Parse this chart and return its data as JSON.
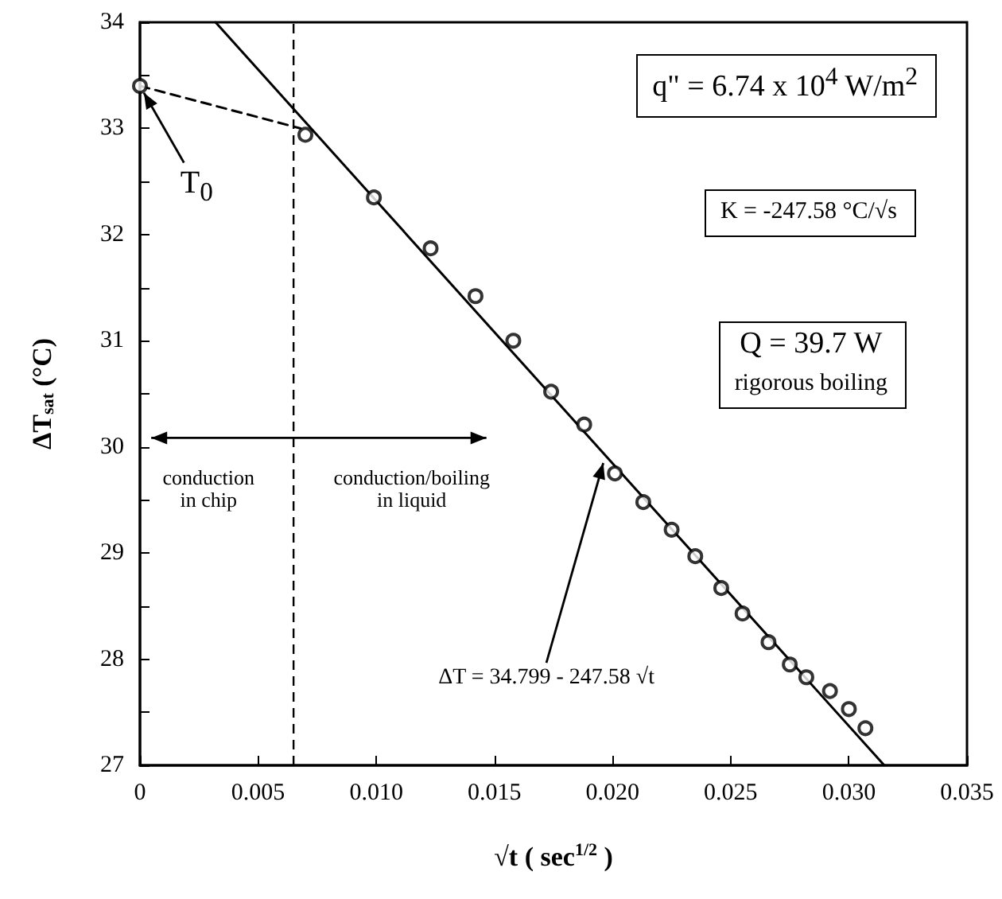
{
  "chart_data": {
    "type": "scatter",
    "xlabel": "√t ( sec$^{1/2}$ )",
    "ylabel": "ΔT$_{sat}$ (°C)",
    "xlim": [
      0,
      0.035
    ],
    "ylim": [
      27,
      34
    ],
    "xticks": [
      0,
      0.005,
      {
        "value": 0.01,
        "label": "0.010"
      },
      0.015,
      {
        "value": 0.02,
        "label": "0.020"
      },
      0.025,
      {
        "value": 0.03,
        "label": "0.030"
      },
      0.035
    ],
    "yticks": [
      27,
      {
        "value": 27.5,
        "label": null
      },
      28,
      {
        "value": 28.5,
        "label": null
      },
      29,
      {
        "value": 29.5,
        "label": null
      },
      30,
      {
        "value": 30.5,
        "label": null
      },
      31,
      {
        "value": 31.5,
        "label": null
      },
      32,
      {
        "value": 32.5,
        "label": null
      },
      33,
      {
        "value": 33.5,
        "label": null
      },
      34
    ],
    "grid": false,
    "series": [
      {
        "color": "#000000",
        "marker": "circle",
        "x": [
          0,
          0.007,
          0.0099,
          0.0123,
          0.0142,
          0.0158,
          0.0174,
          0.0188,
          0.0201,
          0.0213,
          0.0225,
          0.0235,
          0.0246,
          0.0255,
          0.0266,
          0.0275,
          0.0282,
          0.0292,
          0.03,
          0.0307
        ],
        "values": [
          33.4,
          32.94,
          32.35,
          31.87,
          31.42,
          31.0,
          30.52,
          30.21,
          29.75,
          29.48,
          29.22,
          28.97,
          28.67,
          28.43,
          28.16,
          27.95,
          27.83,
          27.7,
          27.53,
          27.35
        ]
      },
      {
        "type": "line",
        "color": "#000000",
        "marker": "none",
        "line_style": "solid",
        "x": [
          0.0032,
          0.0315
        ],
        "values": [
          34,
          27
        ]
      },
      {
        "type": "line",
        "color": "#000000",
        "marker": "none",
        "line_style": "dashed",
        "x": [
          0,
          0.0068
        ],
        "values": [
          33.4,
          33.0
        ]
      }
    ],
    "ref_lines": [
      {
        "axis": "x",
        "value": 0.0065,
        "color": "#000000",
        "line_style": "dashed"
      }
    ],
    "annotations": [
      {
        "text": "T$_{0}$",
        "x": 0,
        "y": 33.4
      },
      "q\" = 6.74 x 10$^{4}$ W/m$^{2}$",
      "K = -247.58 °C/√s",
      "Q = 39.7 W",
      "rigorous boiling",
      "conduction in chip",
      "conduction/boiling in liquid",
      {
        "text": "ΔT = 34.799 - 247.58 √t",
        "x": 0.0197,
        "y": 29.92
      }
    ]
  }
}
